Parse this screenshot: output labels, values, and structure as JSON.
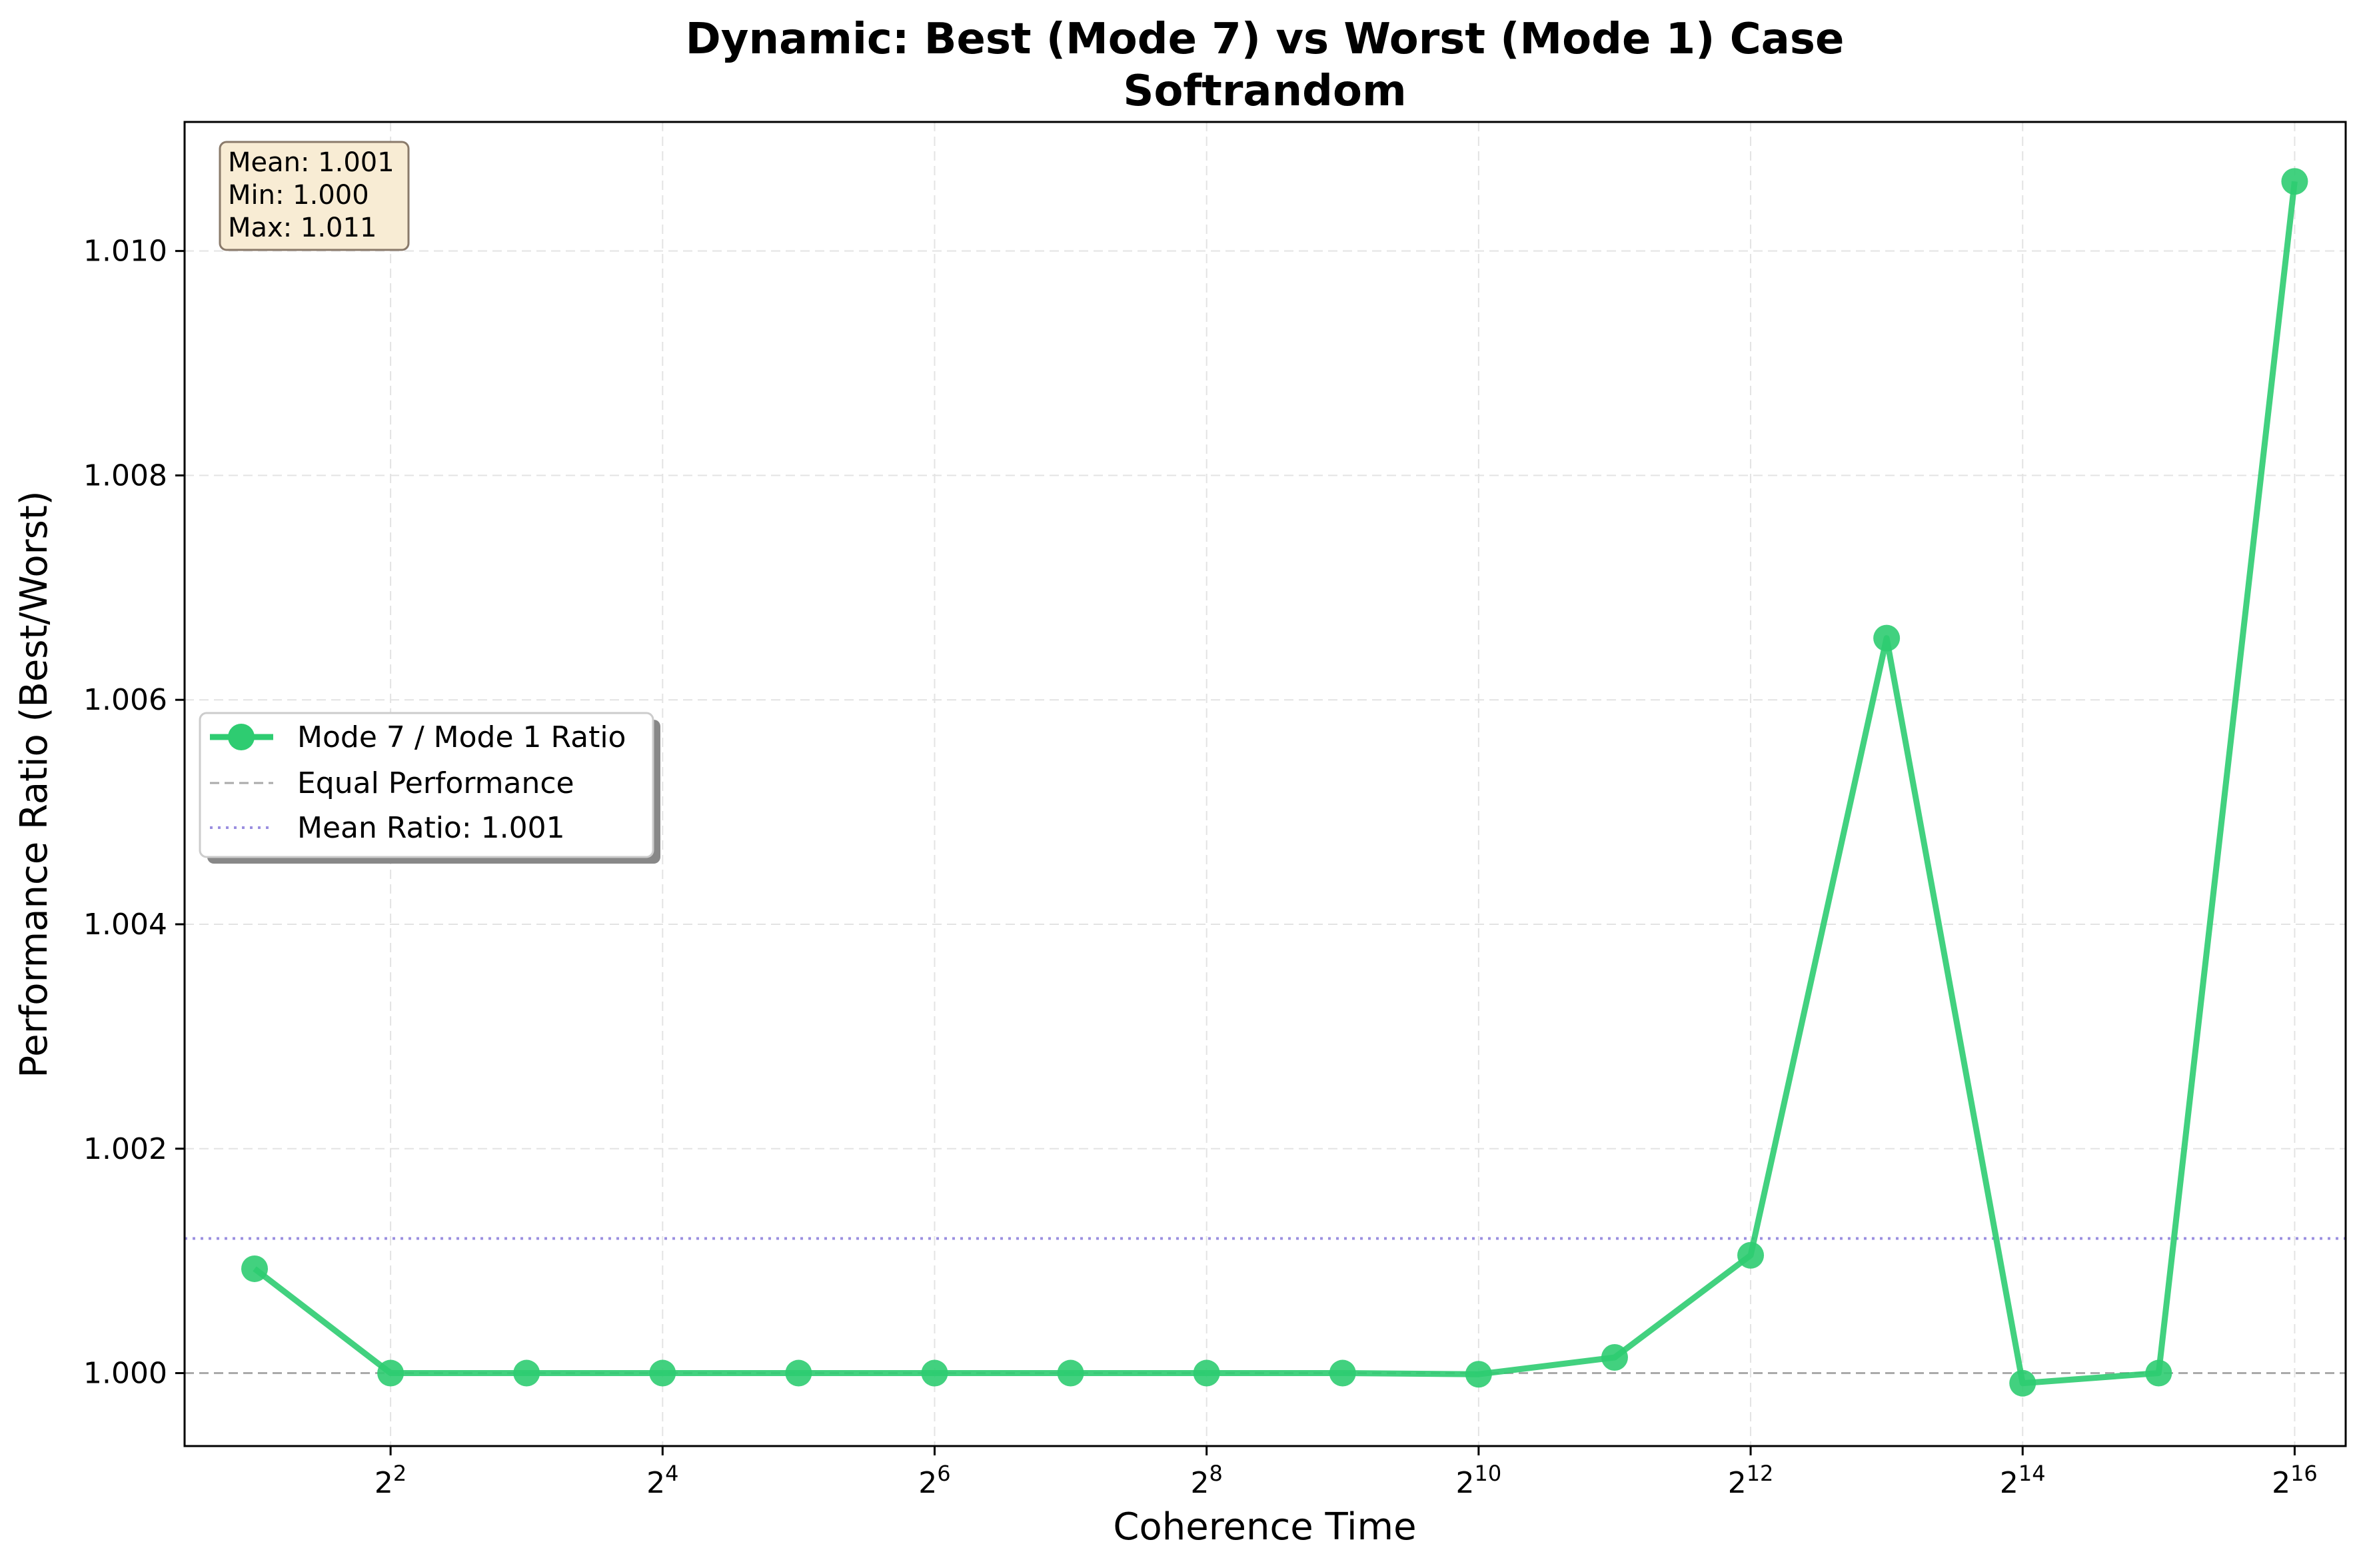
{
  "chart_data": {
    "type": "line",
    "title": "Dynamic: Best (Mode 7) vs Worst (Mode 1) Case",
    "subtitle": "Softrandom",
    "xlabel": "Coherence Time",
    "ylabel": "Performance Ratio (Best/Worst)",
    "x_scale": "log2",
    "x": [
      2,
      4,
      8,
      16,
      32,
      64,
      128,
      256,
      512,
      1024,
      2048,
      4096,
      8192,
      16384,
      32768,
      65536
    ],
    "xlim": [
      1.4,
      85000
    ],
    "ylim": [
      0.99935,
      1.01115
    ],
    "x_ticks": [
      {
        "value": 4,
        "base": "2",
        "exp": "2"
      },
      {
        "value": 16,
        "base": "2",
        "exp": "4"
      },
      {
        "value": 64,
        "base": "2",
        "exp": "6"
      },
      {
        "value": 256,
        "base": "2",
        "exp": "8"
      },
      {
        "value": 1024,
        "base": "2",
        "exp": "10"
      },
      {
        "value": 4096,
        "base": "2",
        "exp": "12"
      },
      {
        "value": 16384,
        "base": "2",
        "exp": "14"
      },
      {
        "value": 65536,
        "base": "2",
        "exp": "16"
      }
    ],
    "y_ticks": [
      {
        "value": 1.0,
        "label": "1.000"
      },
      {
        "value": 1.002,
        "label": "1.002"
      },
      {
        "value": 1.004,
        "label": "1.004"
      },
      {
        "value": 1.006,
        "label": "1.006"
      },
      {
        "value": 1.008,
        "label": "1.008"
      },
      {
        "value": 1.01,
        "label": "1.010"
      }
    ],
    "grid": true,
    "series": [
      {
        "name": "Mode 7 / Mode 1 Ratio",
        "color": "#2ecc71",
        "values": [
          1.00093,
          1.0,
          1.0,
          1.0,
          1.0,
          1.0,
          1.0,
          1.0,
          1.0,
          0.99999,
          1.00014,
          1.00105,
          1.00655,
          0.99991,
          1.0,
          1.01062
        ]
      }
    ],
    "reference_lines": [
      {
        "name": "Equal Performance",
        "value": 1.0,
        "style": "dashed",
        "color": "#aaaaaa"
      },
      {
        "name": "Mean Ratio: 1.001",
        "value": 1.0012,
        "style": "dotted",
        "color": "#9b8fe0"
      }
    ],
    "legend_placement": "center-left",
    "stats_box": {
      "placement": "top-left",
      "lines": [
        "Mean: 1.001",
        "Min: 1.000",
        "Max: 1.011"
      ]
    }
  }
}
